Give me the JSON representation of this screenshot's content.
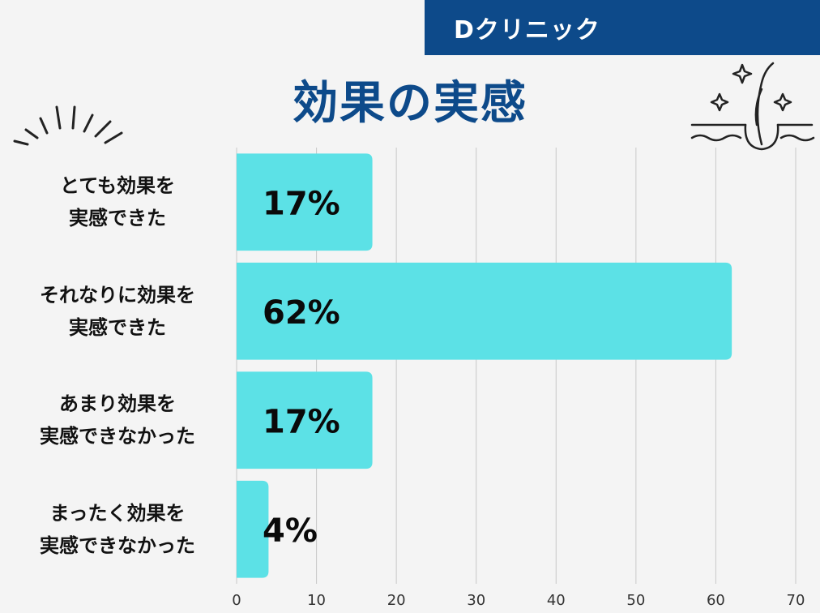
{
  "brand": {
    "label": "Dクリニック"
  },
  "header": {
    "title": "効果の実感"
  },
  "colors": {
    "bar": "#5ce1e6",
    "accent": "#0d4a8a",
    "grid": "#c8c8c8",
    "background": "#f4f4f4"
  },
  "icons": {
    "left_decoration": "sparkle-burst-icon",
    "right_decoration": "hair-follicle-sparkle-icon"
  },
  "chart_data": {
    "type": "bar",
    "orientation": "horizontal",
    "categories": [
      "とても効果を\n実感できた",
      "それなりに効果を\n実感できた",
      "あまり効果を\n実感できなかった",
      "まったく効果を\n実感できなかった"
    ],
    "values": [
      17,
      62,
      17,
      4
    ],
    "data_labels": [
      "17%",
      "62%",
      "17%",
      "4%"
    ],
    "xlim": [
      0,
      70
    ],
    "xticks": [
      0,
      10,
      20,
      30,
      40,
      50,
      60,
      70
    ],
    "grid": true,
    "legend": "none"
  }
}
